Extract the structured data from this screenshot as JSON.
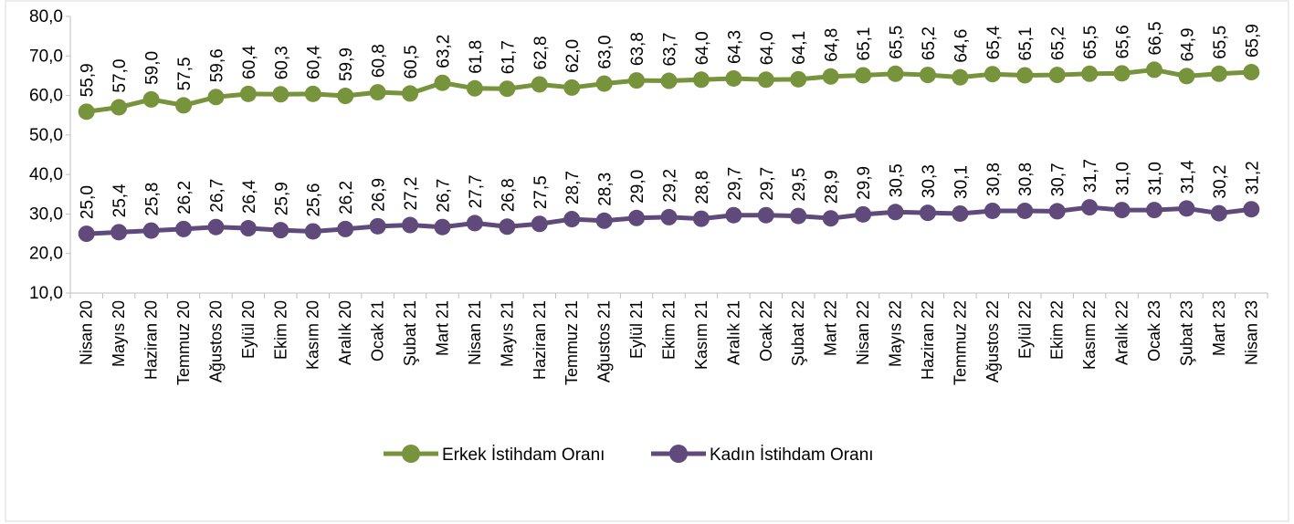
{
  "chart_data": {
    "type": "line",
    "title": "",
    "xlabel": "",
    "ylabel": "",
    "ylim": [
      10,
      80
    ],
    "ytick_step": 10,
    "ytick_labels": [
      "10,0",
      "20,0",
      "30,0",
      "40,0",
      "50,0",
      "60,0",
      "70,0",
      "80,0"
    ],
    "grid": false,
    "legend_position": "bottom",
    "categories": [
      "Nisan 20",
      "Mayıs 20",
      "Haziran 20",
      "Temmuz 20",
      "Ağustos 20",
      "Eylül 20",
      "Ekim 20",
      "Kasım 20",
      "Aralık 20",
      "Ocak 21",
      "Şubat 21",
      "Mart 21",
      "Nisan 21",
      "Mayıs 21",
      "Haziran 21",
      "Temmuz 21",
      "Ağustos 21",
      "Eylül 21",
      "Ekim 21",
      "Kasım 21",
      "Aralık 21",
      "Ocak 22",
      "Şubat 22",
      "Mart 22",
      "Nisan 22",
      "Mayıs 22",
      "Haziran 22",
      "Temmuz 22",
      "Ağustos 22",
      "Eylül 22",
      "Ekim 22",
      "Kasım 22",
      "Aralık 22",
      "Ocak 23",
      "Şubat 23",
      "Mart 23",
      "Nisan 23"
    ],
    "series": [
      {
        "name": "Erkek İstihdam Oranı",
        "color": "#77933c",
        "values": [
          55.9,
          57.0,
          59.0,
          57.5,
          59.6,
          60.4,
          60.3,
          60.4,
          59.9,
          60.8,
          60.5,
          63.2,
          61.8,
          61.7,
          62.8,
          62.0,
          63.0,
          63.8,
          63.7,
          64.0,
          64.3,
          64.0,
          64.1,
          64.8,
          65.1,
          65.5,
          65.2,
          64.6,
          65.4,
          65.1,
          65.2,
          65.5,
          65.6,
          66.5,
          64.9,
          65.5,
          65.9
        ],
        "labels": [
          "55,9",
          "57,0",
          "59,0",
          "57,5",
          "59,6",
          "60,4",
          "60,3",
          "60,4",
          "59,9",
          "60,8",
          "60,5",
          "63,2",
          "61,8",
          "61,7",
          "62,8",
          "62,0",
          "63,0",
          "63,8",
          "63,7",
          "64,0",
          "64,3",
          "64,0",
          "64,1",
          "64,8",
          "65,1",
          "65,5",
          "65,2",
          "64,6",
          "65,4",
          "65,1",
          "65,2",
          "65,5",
          "65,6",
          "66,5",
          "64,9",
          "65,5",
          "65,9"
        ]
      },
      {
        "name": "Kadın İstihdam Oranı",
        "color": "#604a7b",
        "values": [
          25.0,
          25.4,
          25.8,
          26.2,
          26.7,
          26.4,
          25.9,
          25.6,
          26.2,
          26.9,
          27.2,
          26.7,
          27.7,
          26.8,
          27.5,
          28.7,
          28.3,
          29.0,
          29.2,
          28.8,
          29.7,
          29.7,
          29.5,
          28.9,
          29.9,
          30.5,
          30.3,
          30.1,
          30.8,
          30.8,
          30.7,
          31.7,
          31.0,
          31.0,
          31.4,
          30.2,
          31.2
        ],
        "labels": [
          "25,0",
          "25,4",
          "25,8",
          "26,2",
          "26,7",
          "26,4",
          "25,9",
          "25,6",
          "26,2",
          "26,9",
          "27,2",
          "26,7",
          "27,7",
          "26,8",
          "27,5",
          "28,7",
          "28,3",
          "29,0",
          "29,2",
          "28,8",
          "29,7",
          "29,7",
          "29,5",
          "28,9",
          "29,9",
          "30,5",
          "30,3",
          "30,1",
          "30,8",
          "30,8",
          "30,7",
          "31,7",
          "31,0",
          "31,0",
          "31,4",
          "30,2",
          "31,2"
        ]
      }
    ]
  },
  "legend": {
    "erkek_label": "Erkek İstihdam Oranı",
    "kadin_label": "Kadın İstihdam Oranı"
  }
}
